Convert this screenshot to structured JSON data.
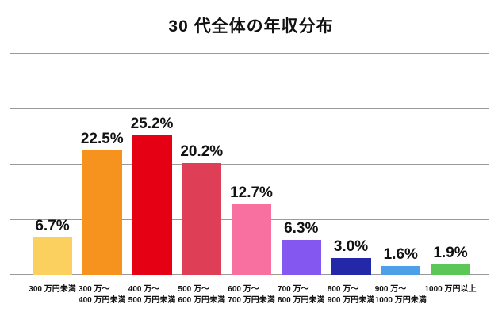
{
  "page": {
    "background": "#ffffff"
  },
  "chart_data": {
    "type": "bar",
    "title": "30 代全体の年収分布",
    "categories": [
      [
        "300 万円未満"
      ],
      [
        "300 万～",
        "400 万円未満"
      ],
      [
        "400 万～",
        "500 万円未満"
      ],
      [
        "500 万～",
        "600 万円未満"
      ],
      [
        "600 万～",
        "700 万円未満"
      ],
      [
        "700 万～",
        "800 万円未満"
      ],
      [
        "800 万～",
        "900 万円未満"
      ],
      [
        "900 万～",
        "1000 万円未満"
      ],
      [
        "1000 万円以上"
      ]
    ],
    "values": [
      6.7,
      22.5,
      25.2,
      20.2,
      12.7,
      6.3,
      3.0,
      1.6,
      1.9
    ],
    "value_labels": [
      "6.7%",
      "22.5%",
      "25.2%",
      "20.2%",
      "12.7%",
      "6.3%",
      "3.0%",
      "1.6%",
      "1.9%"
    ],
    "bar_colors": [
      "#FCD05E",
      "#F6921E",
      "#E60014",
      "#DE3E56",
      "#F7709F",
      "#8457F0",
      "#2328A8",
      "#4D9FE8",
      "#5CC756"
    ],
    "xlabel": "",
    "ylabel": "",
    "ylim": [
      0,
      40
    ],
    "gridlines_pct": [
      10,
      20,
      30,
      40
    ],
    "grid": true,
    "legend": null,
    "gridline_color": "#9b9b9b",
    "axis_color": "#999999",
    "text_color": "#111111"
  }
}
